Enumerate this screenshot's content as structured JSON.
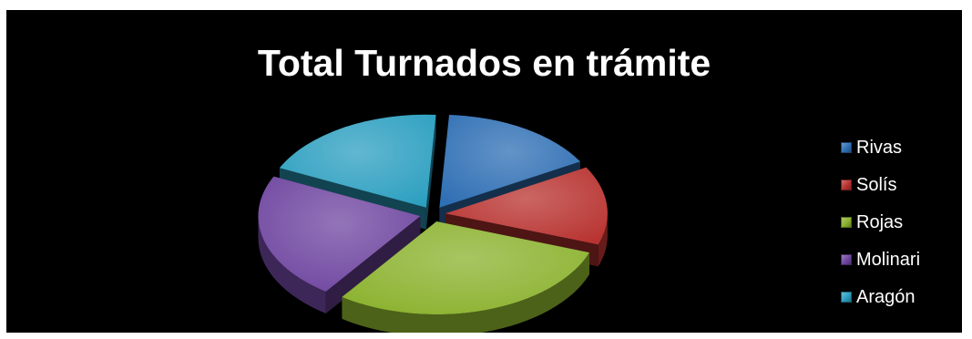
{
  "chart_data": {
    "type": "pie",
    "title": "Total Turnados en trámite",
    "categories": [
      "Rivas",
      "Solís",
      "Rojas",
      "Molinari",
      "Aragón"
    ],
    "values": [
      15,
      13,
      28,
      21,
      18
    ],
    "colors": [
      "#2f6fb4",
      "#b83330",
      "#8bb22e",
      "#6f46a0",
      "#2c9fc0"
    ],
    "style": "3d-exploded",
    "legend_position": "right",
    "background": "#000000"
  }
}
